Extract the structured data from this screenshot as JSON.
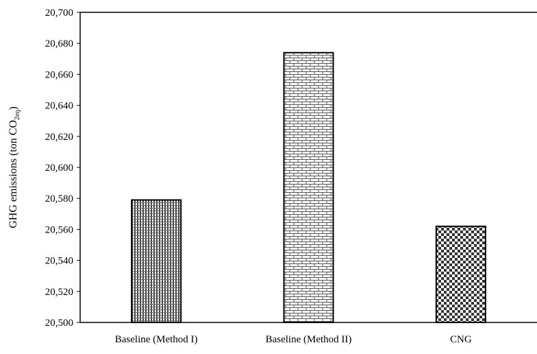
{
  "chart_data": {
    "type": "bar",
    "title": "",
    "xlabel": "",
    "ylabel": {
      "text": "GHG emissions (ton CO",
      "subscript": "2eq",
      "suffix": ")"
    },
    "categories": [
      "Baseline (Method I)",
      "Baseline (Method II)",
      "CNG"
    ],
    "values": [
      20579,
      20674,
      20562
    ],
    "patterns": [
      "dense-vertical-hatch",
      "brick",
      "checker"
    ],
    "ylim": [
      20500,
      20700
    ],
    "yticks": [
      20500,
      20520,
      20540,
      20560,
      20580,
      20600,
      20620,
      20640,
      20660,
      20680,
      20700
    ],
    "ytick_labels": [
      "20,500",
      "20,520",
      "20,540",
      "20,560",
      "20,580",
      "20,600",
      "20,620",
      "20,640",
      "20,660",
      "20,680",
      "20,700"
    ],
    "grid": false,
    "legend": "none",
    "colors": {
      "bar_fill": "#ffffff",
      "bar_stroke": "#000000",
      "pattern": "#333333"
    }
  }
}
